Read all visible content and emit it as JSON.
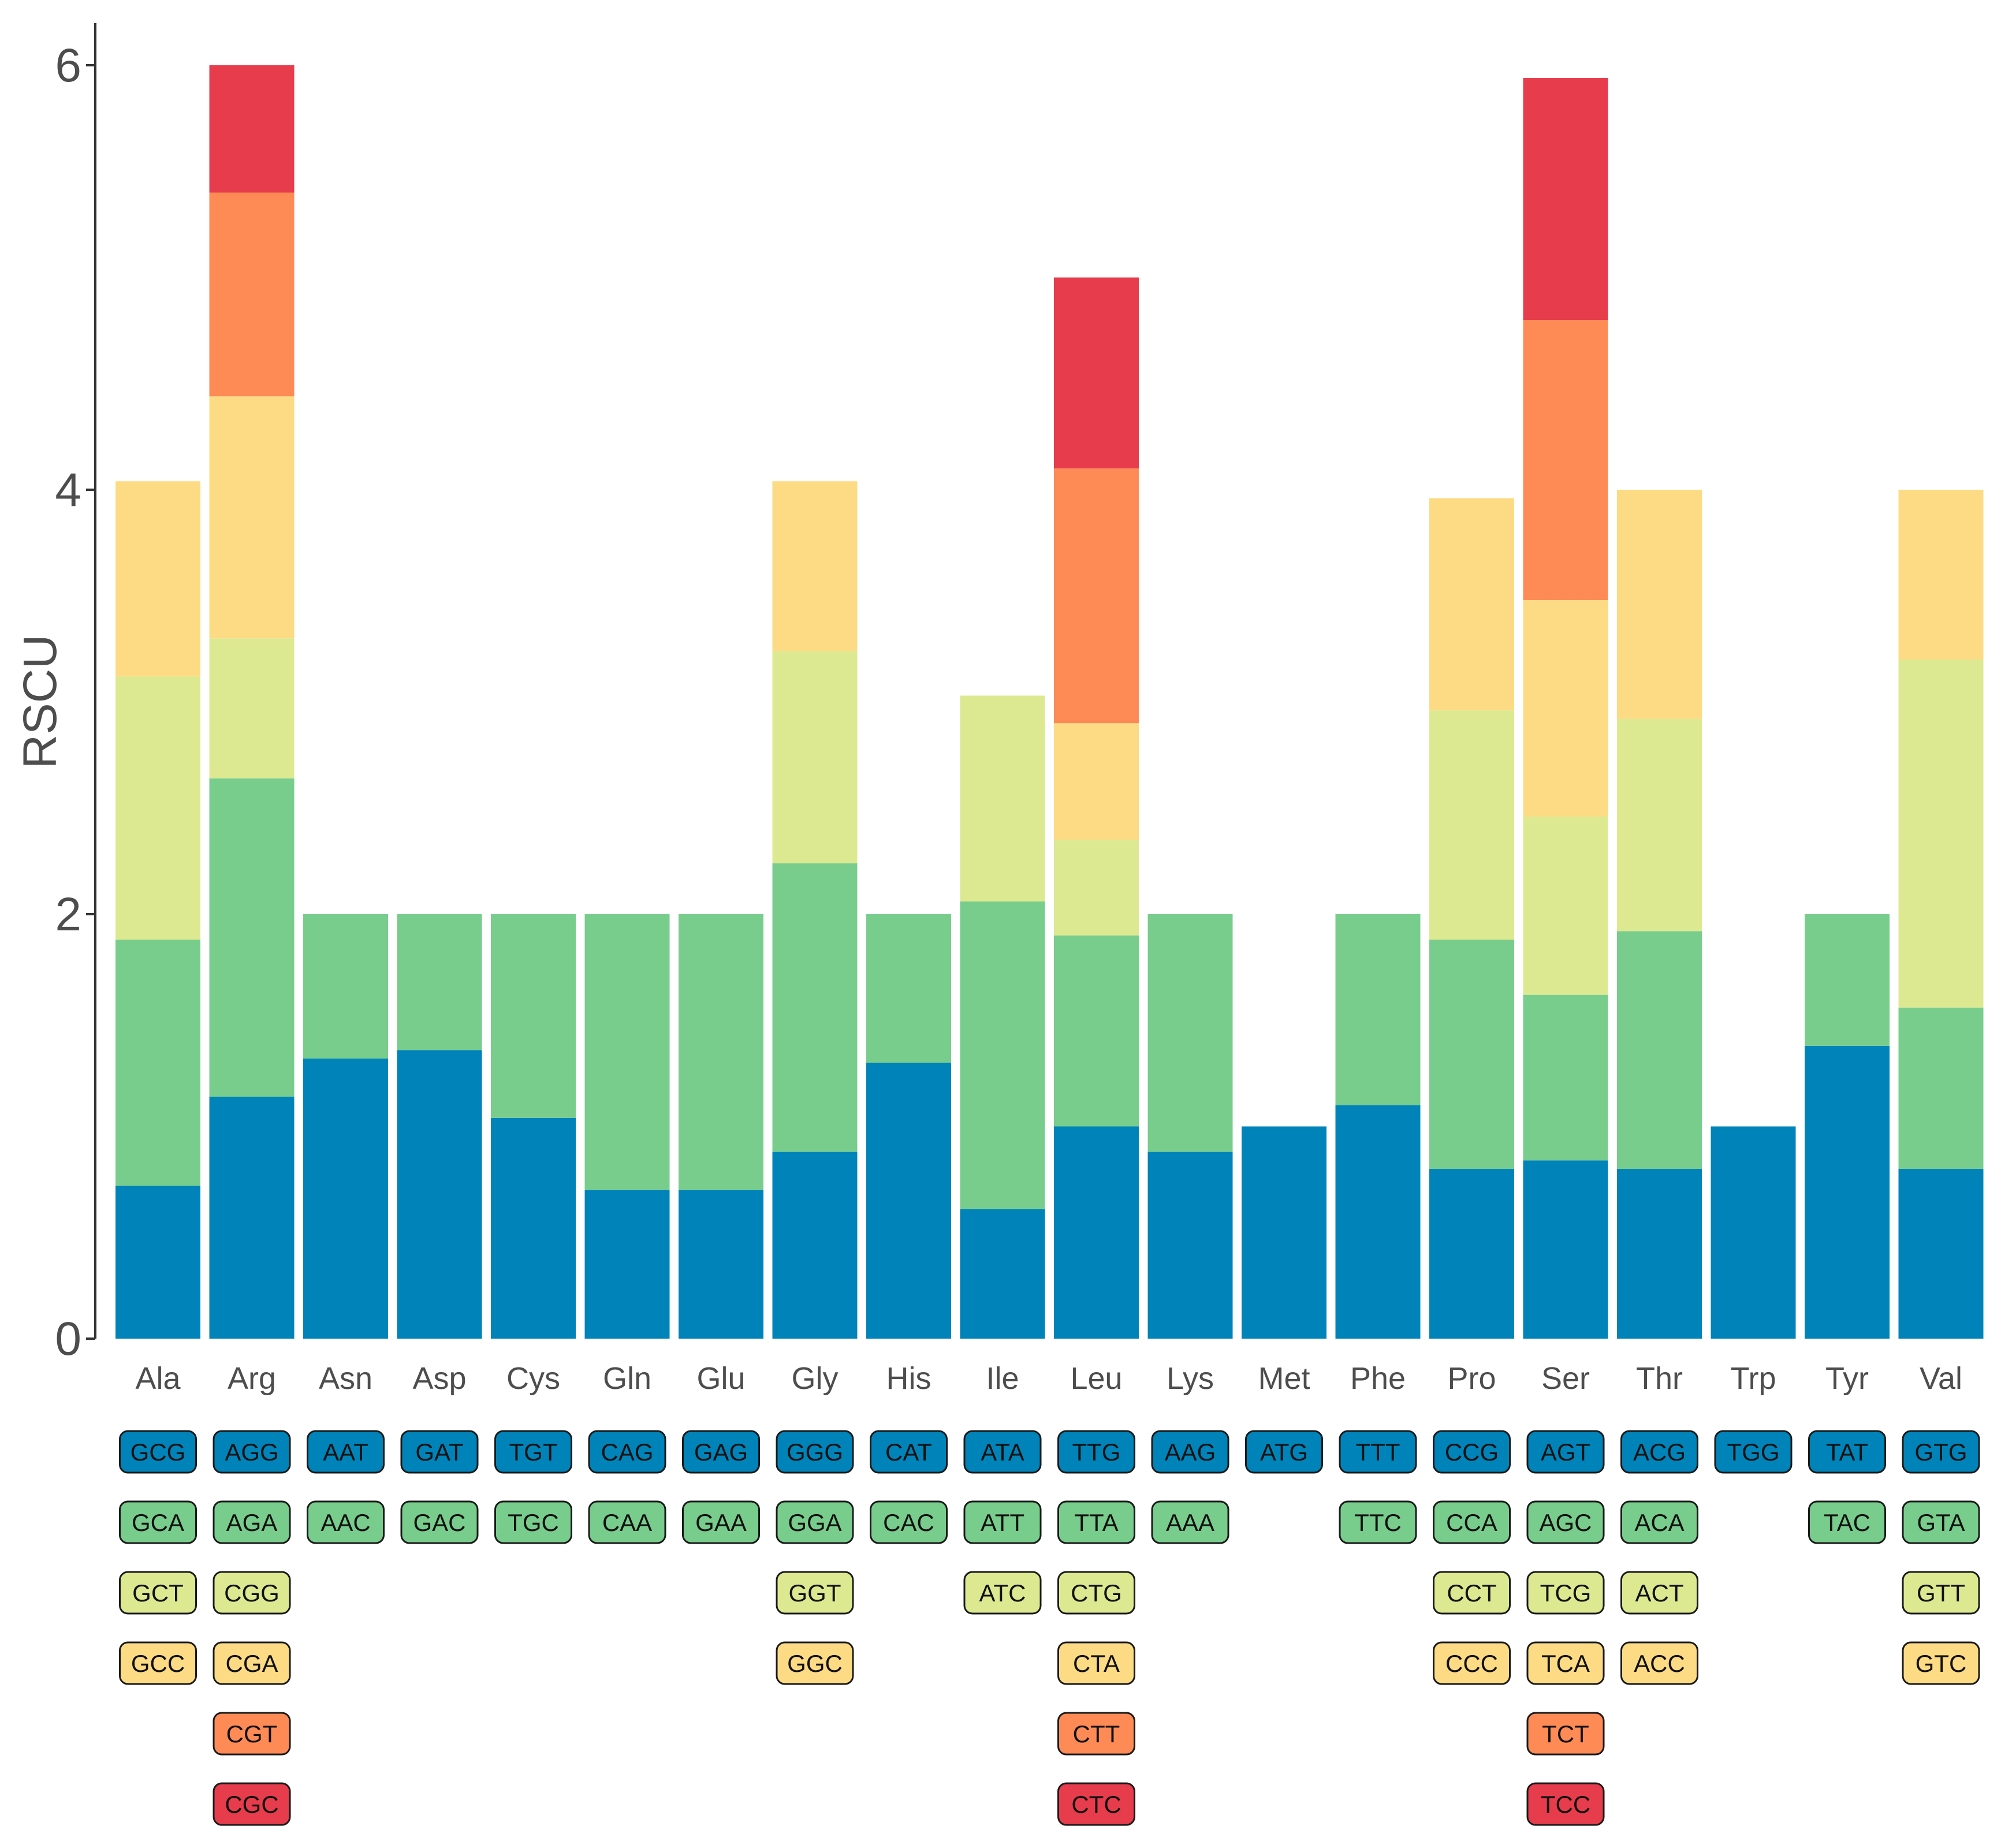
{
  "chart_data": {
    "type": "bar",
    "stacked": true,
    "title": "",
    "xlabel": "",
    "ylabel": "RSCU",
    "ylim": [
      0,
      6
    ],
    "yticks": [
      0,
      2,
      4,
      6
    ],
    "ytick_labels": [
      "0",
      "2",
      "4",
      "6"
    ],
    "grid": false,
    "legend": "codon boxes below each bar",
    "colors": [
      "#0083b8",
      "#78cd8d",
      "#dde991",
      "#fddb84",
      "#fe8b56",
      "#e73c4c"
    ],
    "categories": [
      "Ala",
      "Arg",
      "Asn",
      "Asp",
      "Cys",
      "Gln",
      "Glu",
      "Gly",
      "His",
      "Ile",
      "Leu",
      "Lys",
      "Met",
      "Phe",
      "Pro",
      "Ser",
      "Thr",
      "Trp",
      "Tyr",
      "Val"
    ],
    "stacks": [
      {
        "aa": "Ala",
        "codons": [
          "GCG",
          "GCA",
          "GCT",
          "GCC"
        ],
        "values": [
          0.72,
          1.16,
          1.24,
          0.92
        ]
      },
      {
        "aa": "Arg",
        "codons": [
          "AGG",
          "AGA",
          "CGG",
          "CGA",
          "CGT",
          "CGC"
        ],
        "values": [
          1.14,
          1.5,
          0.66,
          1.14,
          0.96,
          0.6
        ]
      },
      {
        "aa": "Asn",
        "codons": [
          "AAT",
          "AAC"
        ],
        "values": [
          1.32,
          0.68
        ]
      },
      {
        "aa": "Asp",
        "codons": [
          "GAT",
          "GAC"
        ],
        "values": [
          1.36,
          0.64
        ]
      },
      {
        "aa": "Cys",
        "codons": [
          "TGT",
          "TGC"
        ],
        "values": [
          1.04,
          0.96
        ]
      },
      {
        "aa": "Gln",
        "codons": [
          "CAG",
          "CAA"
        ],
        "values": [
          0.7,
          1.3
        ]
      },
      {
        "aa": "Glu",
        "codons": [
          "GAG",
          "GAA"
        ],
        "values": [
          0.7,
          1.3
        ]
      },
      {
        "aa": "Gly",
        "codons": [
          "GGG",
          "GGA",
          "GGT",
          "GGC"
        ],
        "values": [
          0.88,
          1.36,
          1.0,
          0.8
        ]
      },
      {
        "aa": "His",
        "codons": [
          "CAT",
          "CAC"
        ],
        "values": [
          1.3,
          0.7
        ]
      },
      {
        "aa": "Ile",
        "codons": [
          "ATA",
          "ATT",
          "ATC"
        ],
        "values": [
          0.61,
          1.45,
          0.97
        ]
      },
      {
        "aa": "Leu",
        "codons": [
          "TTG",
          "TTA",
          "CTG",
          "CTA",
          "CTT",
          "CTC"
        ],
        "values": [
          1.0,
          0.9,
          0.45,
          0.55,
          1.2,
          0.9
        ]
      },
      {
        "aa": "Lys",
        "codons": [
          "AAG",
          "AAA"
        ],
        "values": [
          0.88,
          1.12
        ]
      },
      {
        "aa": "Met",
        "codons": [
          "ATG"
        ],
        "values": [
          1.0
        ]
      },
      {
        "aa": "Phe",
        "codons": [
          "TTT",
          "TTC"
        ],
        "values": [
          1.1,
          0.9
        ]
      },
      {
        "aa": "Pro",
        "codons": [
          "CCG",
          "CCA",
          "CCT",
          "CCC"
        ],
        "values": [
          0.8,
          1.08,
          1.08,
          1.0
        ]
      },
      {
        "aa": "Ser",
        "codons": [
          "AGT",
          "AGC",
          "TCG",
          "TCA",
          "TCT",
          "TCC"
        ],
        "values": [
          0.84,
          0.78,
          0.84,
          1.02,
          1.32,
          1.14
        ]
      },
      {
        "aa": "Thr",
        "codons": [
          "ACG",
          "ACA",
          "ACT",
          "ACC"
        ],
        "values": [
          0.8,
          1.12,
          1.0,
          1.08
        ]
      },
      {
        "aa": "Trp",
        "codons": [
          "TGG"
        ],
        "values": [
          1.0
        ]
      },
      {
        "aa": "Tyr",
        "codons": [
          "TAT",
          "TAC"
        ],
        "values": [
          1.38,
          0.62
        ]
      },
      {
        "aa": "Val",
        "codons": [
          "GTG",
          "GTA",
          "GTT",
          "GTC"
        ],
        "values": [
          0.8,
          0.76,
          1.64,
          0.8
        ]
      }
    ]
  }
}
